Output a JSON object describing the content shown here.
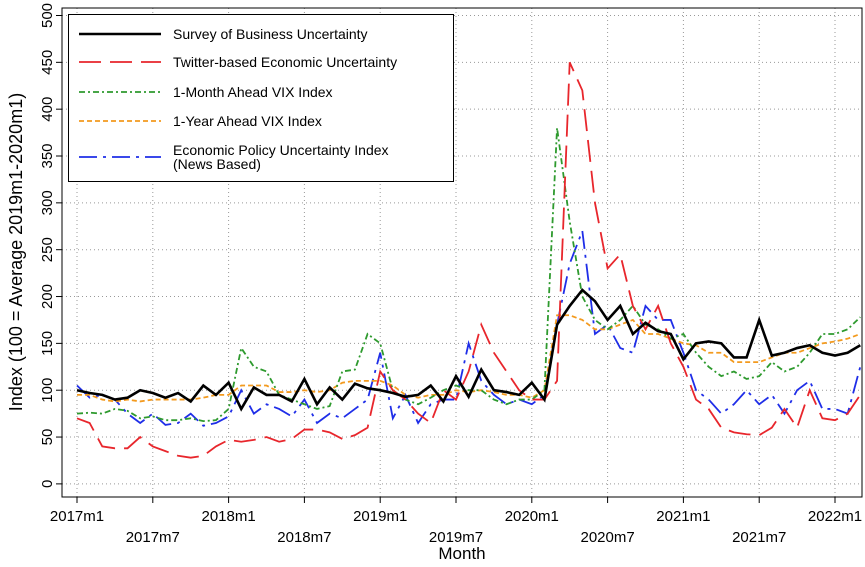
{
  "chart_data": {
    "type": "line",
    "y_label": "Index (100 = Average 2019m1-2020m1)",
    "x_label": "Month",
    "categories": [
      "2017m1",
      null,
      null,
      null,
      null,
      null,
      "2017m7",
      null,
      null,
      null,
      null,
      null,
      "2018m1",
      null,
      null,
      null,
      null,
      null,
      "2018m7",
      null,
      null,
      null,
      null,
      null,
      "2019m1",
      null,
      null,
      null,
      null,
      null,
      "2019m7",
      null,
      null,
      null,
      null,
      null,
      "2020m1",
      null,
      null,
      null,
      null,
      null,
      "2020m7",
      null,
      null,
      null,
      null,
      null,
      "2021m1",
      null,
      null,
      null,
      null,
      null,
      "2021m7",
      null,
      null,
      null,
      null,
      null,
      "2022m1",
      null,
      null
    ],
    "ylim": [
      -14,
      508
    ],
    "yticks": [
      0,
      50,
      100,
      150,
      200,
      250,
      300,
      350,
      400,
      450,
      500
    ],
    "grid": true,
    "legend": "top-left",
    "series": [
      {
        "name": "Survey of Business Uncertainty",
        "color": "#000000",
        "style": "solid",
        "values": [
          100,
          97,
          95,
          90,
          92,
          100,
          97,
          92,
          97,
          88,
          105,
          95,
          108,
          80,
          103,
          95,
          95,
          88,
          112,
          85,
          103,
          90,
          107,
          102,
          100,
          97,
          93,
          95,
          105,
          88,
          115,
          93,
          122,
          100,
          98,
          95,
          108,
          90,
          170,
          190,
          207,
          195,
          175,
          190,
          160,
          172,
          163,
          160,
          133,
          150,
          152,
          150,
          135,
          135,
          175,
          137,
          140,
          145,
          148,
          140,
          137,
          140,
          148
        ]
      },
      {
        "name": "Twitter-based Economic Uncertainty",
        "color": "#e8262c",
        "style": "longdash",
        "values": [
          70,
          65,
          40,
          38,
          38,
          50,
          40,
          35,
          30,
          28,
          30,
          40,
          47,
          45,
          47,
          50,
          45,
          48,
          58,
          58,
          55,
          48,
          52,
          60,
          120,
          100,
          90,
          75,
          65,
          100,
          90,
          120,
          170,
          140,
          120,
          100,
          90,
          90,
          110,
          450,
          420,
          300,
          230,
          245,
          190,
          165,
          190,
          150,
          125,
          90,
          80,
          60,
          55,
          53,
          52,
          60,
          80,
          60,
          100,
          70,
          68,
          75,
          95
        ]
      },
      {
        "name": "1-Month Ahead VIX Index",
        "color": "#2e9a2e",
        "style": "dashdot",
        "values": [
          75,
          76,
          75,
          80,
          78,
          70,
          72,
          68,
          68,
          70,
          67,
          68,
          80,
          145,
          125,
          120,
          95,
          90,
          85,
          80,
          83,
          120,
          122,
          160,
          150,
          100,
          90,
          85,
          92,
          100,
          105,
          100,
          100,
          90,
          85,
          90,
          90,
          100,
          380,
          280,
          200,
          175,
          165,
          175,
          190,
          170,
          165,
          155,
          160,
          140,
          125,
          115,
          120,
          112,
          115,
          130,
          120,
          125,
          140,
          160,
          160,
          165,
          178
        ]
      },
      {
        "name": "1-Year Ahead VIX Index",
        "color": "#f39a1e",
        "style": "shortdash",
        "values": [
          95,
          95,
          90,
          88,
          90,
          88,
          90,
          90,
          90,
          90,
          92,
          95,
          95,
          105,
          105,
          105,
          98,
          98,
          100,
          98,
          100,
          108,
          110,
          110,
          110,
          105,
          95,
          92,
          95,
          95,
          100,
          98,
          100,
          98,
          95,
          95,
          92,
          100,
          180,
          180,
          175,
          165,
          165,
          170,
          175,
          160,
          160,
          155,
          150,
          148,
          140,
          140,
          130,
          130,
          130,
          135,
          140,
          140,
          145,
          150,
          152,
          155,
          160
        ]
      },
      {
        "name": "Economic Policy Uncertainty Index\n(News Based)",
        "color": "#1f2ee8",
        "style": "longdashdot",
        "values": [
          105,
          92,
          95,
          90,
          75,
          65,
          75,
          63,
          65,
          75,
          62,
          65,
          72,
          100,
          75,
          85,
          80,
          72,
          90,
          65,
          75,
          70,
          80,
          90,
          140,
          70,
          95,
          65,
          85,
          90,
          90,
          150,
          110,
          95,
          85,
          90,
          85,
          95,
          170,
          235,
          270,
          160,
          170,
          145,
          140,
          190,
          175,
          175,
          140,
          100,
          90,
          75,
          85,
          100,
          85,
          95,
          75,
          100,
          110,
          80,
          80,
          75,
          125
        ]
      }
    ]
  }
}
